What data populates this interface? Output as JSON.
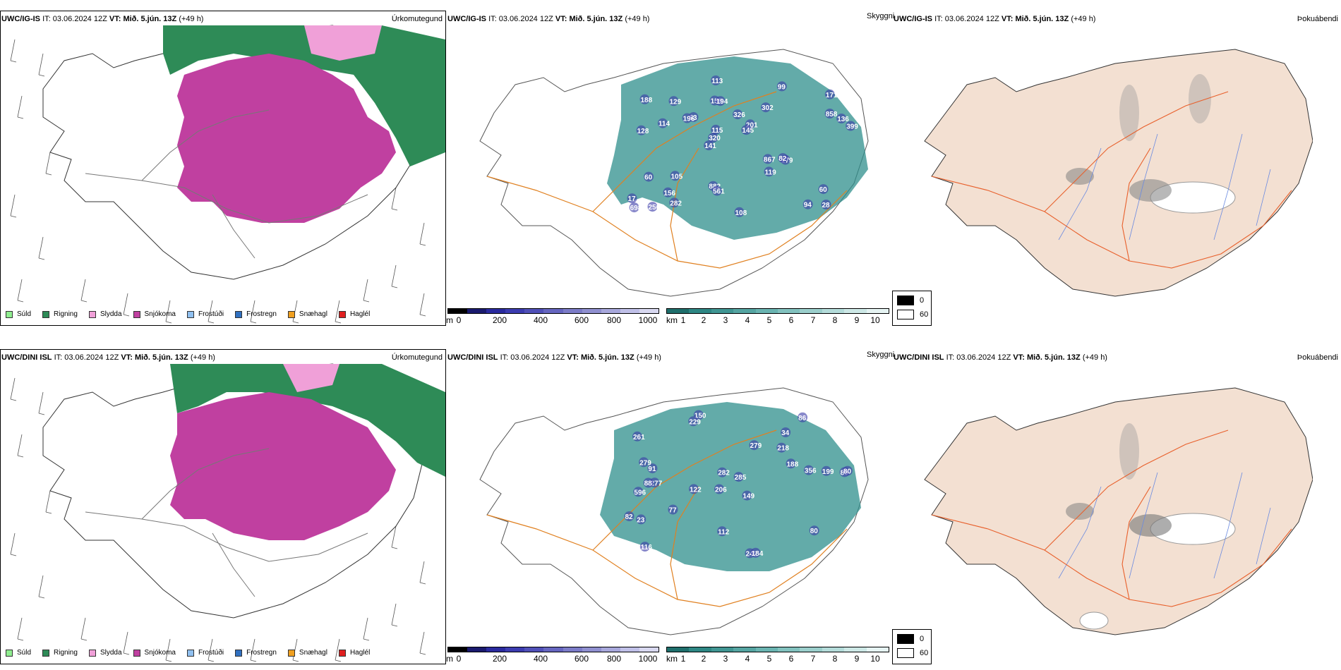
{
  "rows": [
    {
      "model": "UWC/IG-IS",
      "it_label": "IT:",
      "it_value": "03.06.2024 12Z",
      "vt_label": "VT:",
      "vt_value": "Mið. 5.jún. 13Z",
      "lead": "(+49 h)",
      "precip_title": "Úrkomutegund",
      "cloud_title": "Skyggni",
      "fog_title": "Þokuábendi",
      "labels": [
        "28",
        "128",
        "171",
        "141",
        "302",
        "256",
        "159",
        "326",
        "60",
        "53",
        "17",
        "156",
        "194",
        "201",
        "179",
        "188",
        "113",
        "399",
        "867",
        "858",
        "320",
        "882",
        "115",
        "129",
        "99",
        "105",
        "94",
        "60",
        "82",
        "108",
        "196",
        "114",
        "119",
        "282",
        "136",
        "145",
        "698",
        "561"
      ]
    },
    {
      "model": "UWC/DINI ISL",
      "it_label": "IT:",
      "it_value": "03.06.2024 12Z",
      "vt_label": "VT:",
      "vt_value": "Mið. 5.jún. 13Z",
      "lead": "(+49 h)",
      "precip_title": "Úrkomutegund",
      "cloud_title": "Skyggni",
      "fog_title": "Þokuábendi",
      "labels": [
        "150",
        "34",
        "80",
        "206",
        "149",
        "277",
        "261",
        "218",
        "596",
        "279",
        "285",
        "116",
        "229",
        "122",
        "242",
        "184",
        "112",
        "86",
        "188",
        "77",
        "91",
        "88",
        "80",
        "199",
        "82",
        "279",
        "282",
        "356",
        "80",
        "23"
      ]
    }
  ],
  "precip_legend": [
    {
      "label": "Súld",
      "color": "#90ee90"
    },
    {
      "label": "Rigning",
      "color": "#2e8b57"
    },
    {
      "label": "Slydda",
      "color": "#f0a0d8"
    },
    {
      "label": "Snjókoma",
      "color": "#c040a0"
    },
    {
      "label": "Frostúði",
      "color": "#90c0f0"
    },
    {
      "label": "Frostregn",
      "color": "#3070c0"
    },
    {
      "label": "Snæhagl",
      "color": "#f0a020"
    },
    {
      "label": "Haglél",
      "color": "#e02020"
    }
  ],
  "ceiling_bar": {
    "unit": "m",
    "ticks": [
      "0",
      "200",
      "400",
      "600",
      "800",
      "1000"
    ],
    "colors": [
      "#000000",
      "#1a1a6e",
      "#2a2a9e",
      "#3c3cb0",
      "#5050b8",
      "#6666c0",
      "#7c7cc8",
      "#9090d0",
      "#a8a8dc",
      "#c0c0e8",
      "#d8d8f0"
    ]
  },
  "visibility_bar": {
    "unit": "km",
    "ticks": [
      "1",
      "2",
      "3",
      "4",
      "5",
      "6",
      "7",
      "8",
      "9",
      "10"
    ],
    "colors": [
      "#1f6f6c",
      "#2e8784",
      "#409693",
      "#55a5a2",
      "#6ab4b1",
      "#82c2bf",
      "#9bcfcc",
      "#b4dcda",
      "#cde8e6",
      "#e6f4f3"
    ]
  },
  "fog_legend": [
    {
      "label": "0",
      "color": "#000000"
    },
    {
      "label": "60",
      "color": "#ffffff"
    }
  ],
  "colors": {
    "rain": "#2e8b57",
    "snow": "#c040a0",
    "sleet": "#f0a0d8",
    "cloud": "#2f8f8c",
    "low_cloud": "#3a3aa8",
    "land": "#f3e0d2",
    "roads": "#e8602c",
    "rivers": "#6a8ae0"
  }
}
